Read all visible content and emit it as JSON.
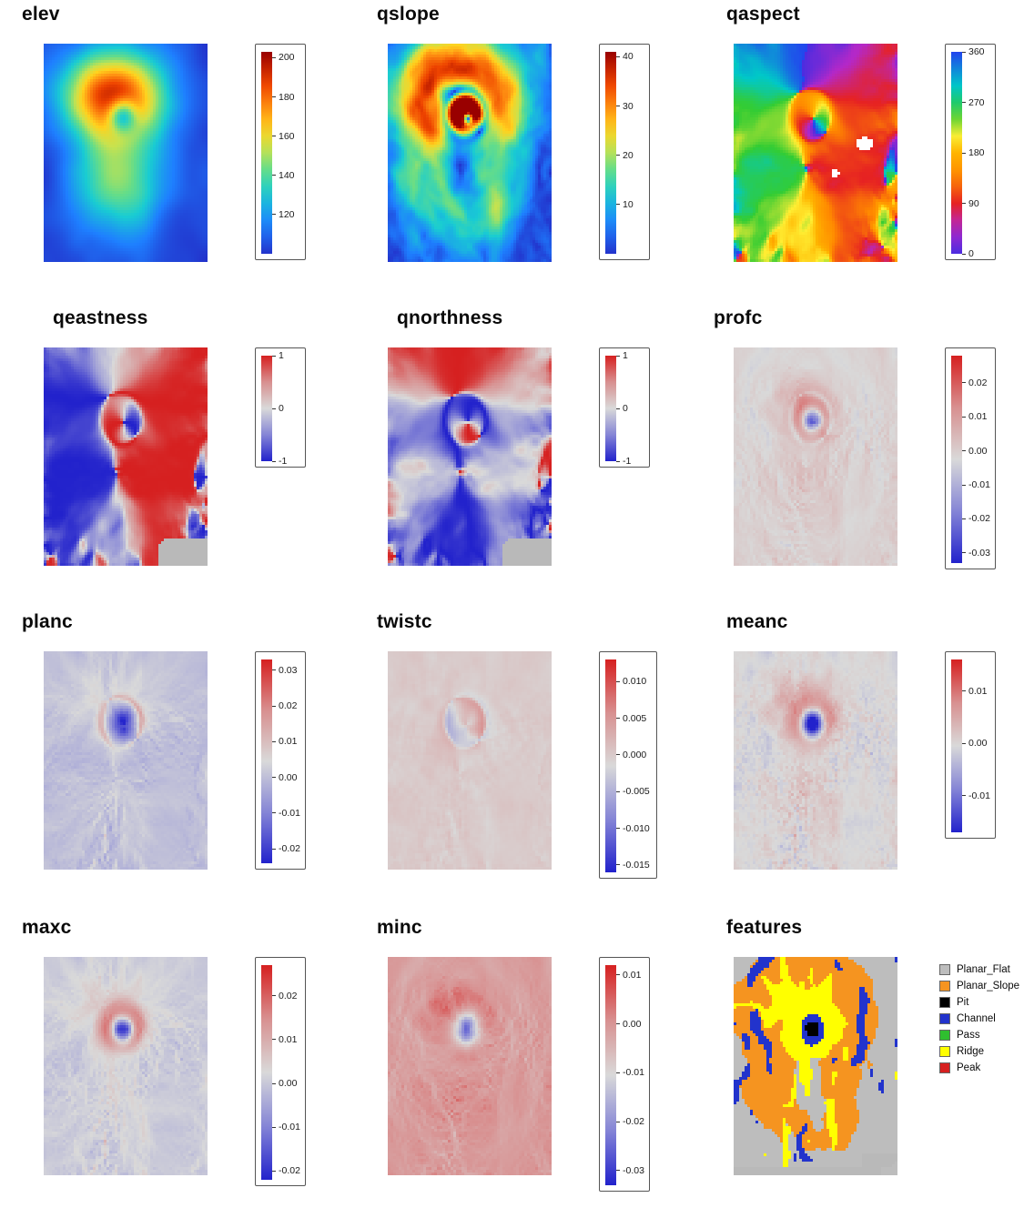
{
  "figure": {
    "background": "#ffffff",
    "description": "Grid of 12 terrain-attribute raster maps, each with a title and a colorbar or categorical legend"
  },
  "colormaps": {
    "rainbow": [
      [
        0,
        "#2233cc"
      ],
      [
        0.14,
        "#1e7fff"
      ],
      [
        0.3,
        "#19ccd2"
      ],
      [
        0.42,
        "#66dd88"
      ],
      [
        0.52,
        "#c8e24e"
      ],
      [
        0.62,
        "#ffd21e"
      ],
      [
        0.72,
        "#ff9212"
      ],
      [
        0.84,
        "#ee4400"
      ],
      [
        1,
        "#990000"
      ]
    ],
    "aspect": [
      [
        0,
        "#4b2ce0"
      ],
      [
        0.13,
        "#b428c8"
      ],
      [
        0.25,
        "#e62222"
      ],
      [
        0.38,
        "#ff8800"
      ],
      [
        0.5,
        "#ffb400"
      ],
      [
        0.58,
        "#ffee33"
      ],
      [
        0.7,
        "#33cc33"
      ],
      [
        0.83,
        "#00c8c8"
      ],
      [
        1,
        "#2244ee"
      ]
    ],
    "divergent": [
      [
        0,
        "#2222cc"
      ],
      [
        0.25,
        "#8585d6"
      ],
      [
        0.5,
        "#d9d9d9"
      ],
      [
        0.75,
        "#d89090"
      ],
      [
        1,
        "#d62020"
      ]
    ]
  },
  "panels": [
    {
      "id": "elev",
      "title": "elev",
      "colormap": "rainbow",
      "zlim": [
        100,
        203
      ],
      "ticks": [
        {
          "label": "200",
          "value": 200
        },
        {
          "label": "180",
          "value": 180
        },
        {
          "label": "160",
          "value": 160
        },
        {
          "label": "140",
          "value": 140
        },
        {
          "label": "120",
          "value": 120
        }
      ]
    },
    {
      "id": "qslope",
      "title": "qslope",
      "colormap": "rainbow",
      "zlim": [
        0,
        41
      ],
      "ticks": [
        {
          "label": "40",
          "value": 40
        },
        {
          "label": "30",
          "value": 30
        },
        {
          "label": "20",
          "value": 20
        },
        {
          "label": "10",
          "value": 10
        }
      ]
    },
    {
      "id": "qaspect",
      "title": "qaspect",
      "colormap": "aspect",
      "zlim": [
        0,
        360
      ],
      "ticks": [
        {
          "label": "360",
          "value": 360
        },
        {
          "label": "270",
          "value": 270
        },
        {
          "label": "180",
          "value": 180
        },
        {
          "label": "90",
          "value": 90
        },
        {
          "label": "0",
          "value": 0
        }
      ]
    },
    {
      "id": "qeastness",
      "title": "qeastness",
      "colormap": "divergent",
      "zlim": [
        -1,
        1
      ],
      "ticks": [
        {
          "label": "1",
          "value": 1
        },
        {
          "label": "0",
          "value": 0
        },
        {
          "label": "-1",
          "value": -1
        }
      ]
    },
    {
      "id": "qnorthness",
      "title": "qnorthness",
      "colormap": "divergent",
      "zlim": [
        -1,
        1
      ],
      "ticks": [
        {
          "label": "1",
          "value": 1
        },
        {
          "label": "0",
          "value": 0
        },
        {
          "label": "-1",
          "value": -1
        }
      ]
    },
    {
      "id": "profc",
      "title": "profc",
      "colormap": "divergent",
      "zlim": [
        -0.033,
        0.028
      ],
      "ticks": [
        {
          "label": "0.02",
          "value": 0.02
        },
        {
          "label": "0.01",
          "value": 0.01
        },
        {
          "label": "0.00",
          "value": 0
        },
        {
          "label": "-0.01",
          "value": -0.01
        },
        {
          "label": "-0.02",
          "value": -0.02
        },
        {
          "label": "-0.03",
          "value": -0.03
        }
      ]
    },
    {
      "id": "planc",
      "title": "planc",
      "colormap": "divergent",
      "zlim": [
        -0.024,
        0.033
      ],
      "ticks": [
        {
          "label": "0.03",
          "value": 0.03
        },
        {
          "label": "0.02",
          "value": 0.02
        },
        {
          "label": "0.01",
          "value": 0.01
        },
        {
          "label": "0.00",
          "value": 0
        },
        {
          "label": "-0.01",
          "value": -0.01
        },
        {
          "label": "-0.02",
          "value": -0.02
        }
      ]
    },
    {
      "id": "twistc",
      "title": "twistc",
      "colormap": "divergent",
      "zlim": [
        -0.016,
        0.013
      ],
      "ticks": [
        {
          "label": "0.010",
          "value": 0.01
        },
        {
          "label": "0.005",
          "value": 0.005
        },
        {
          "label": "0.000",
          "value": 0
        },
        {
          "label": "-0.005",
          "value": -0.005
        },
        {
          "label": "-0.010",
          "value": -0.01
        },
        {
          "label": "-0.015",
          "value": -0.015
        }
      ]
    },
    {
      "id": "meanc",
      "title": "meanc",
      "colormap": "divergent",
      "zlim": [
        -0.017,
        0.016
      ],
      "ticks": [
        {
          "label": "0.01",
          "value": 0.01
        },
        {
          "label": "0.00",
          "value": 0
        },
        {
          "label": "-0.01",
          "value": -0.01
        }
      ]
    },
    {
      "id": "maxc",
      "title": "maxc",
      "colormap": "divergent",
      "zlim": [
        -0.022,
        0.027
      ],
      "ticks": [
        {
          "label": "0.02",
          "value": 0.02
        },
        {
          "label": "0.01",
          "value": 0.01
        },
        {
          "label": "0.00",
          "value": 0
        },
        {
          "label": "-0.01",
          "value": -0.01
        },
        {
          "label": "-0.02",
          "value": -0.02
        }
      ]
    },
    {
      "id": "minc",
      "title": "minc",
      "colormap": "divergent",
      "zlim": [
        -0.033,
        0.012
      ],
      "ticks": [
        {
          "label": "0.01",
          "value": 0.01
        },
        {
          "label": "0.00",
          "value": 0
        },
        {
          "label": "-0.01",
          "value": -0.01
        },
        {
          "label": "-0.02",
          "value": -0.02
        },
        {
          "label": "-0.03",
          "value": -0.03
        }
      ]
    },
    {
      "id": "features",
      "title": "features",
      "legend_type": "categories",
      "categories": [
        {
          "label": "Planar_Flat",
          "color": "#bdbdbd"
        },
        {
          "label": "Planar_Slope",
          "color": "#f59420"
        },
        {
          "label": "Pit",
          "color": "#000000"
        },
        {
          "label": "Channel",
          "color": "#2233cc"
        },
        {
          "label": "Pass",
          "color": "#2fbf2f"
        },
        {
          "label": "Ridge",
          "color": "#ffff00"
        },
        {
          "label": "Peak",
          "color": "#d62020"
        }
      ]
    }
  ],
  "chart_data": [
    {
      "type": "heatmap",
      "title": "elev",
      "zlim": [
        100,
        203
      ],
      "colorbar_ticks": [
        120,
        140,
        160,
        180,
        200
      ],
      "palette": "rainbow blue(low)-cyan-green-yellow-orange-darkred(high)",
      "grid_approx": [
        60,
        80
      ],
      "pattern": "warm 160-200 dome in upper centre with a small cooler (~130-150) depression spot inside it, yellow-green lobe extending south, flat blue ~100-115 surroundings"
    },
    {
      "type": "heatmap",
      "title": "qslope",
      "zlim": [
        0,
        41
      ],
      "colorbar_ticks": [
        10,
        20,
        30,
        40
      ],
      "palette": "rainbow",
      "grid_approx": [
        60,
        80
      ],
      "pattern": "orange-red steep rings (25-40) around dome flanks and crater rim, blue 0-8 background with cyan speckle"
    },
    {
      "type": "heatmap",
      "title": "qaspect",
      "zlim": [
        0,
        360
      ],
      "colorbar_ticks": [
        0,
        90,
        180,
        270,
        360
      ],
      "palette": "cyclic violet-red-orange-yellow-green-cyan-blue",
      "grid_approx": [
        60,
        80
      ],
      "pattern": "green west-facing left side, red-orange east/south-facing right and bottom, purple north-facing upper right, small white NA patches"
    },
    {
      "type": "heatmap",
      "title": "qeastness",
      "zlim": [
        -1,
        1
      ],
      "colorbar_ticks": [
        -1,
        0,
        1
      ],
      "palette": "blue-gray-red divergent",
      "grid_approx": [
        60,
        80
      ],
      "pattern": "left half blue (-1, west-facing), right half red (+1, east-facing), reversed couplet inside the depression, gray NA patch lower right"
    },
    {
      "type": "heatmap",
      "title": "qnorthness",
      "zlim": [
        -1,
        1
      ],
      "colorbar_ticks": [
        -1,
        0,
        1
      ],
      "palette": "blue-gray-red divergent",
      "grid_approx": [
        60,
        80
      ],
      "pattern": "upper area red (north-facing), lower area blue (south-facing), reversed couplet inside the depression"
    },
    {
      "type": "heatmap",
      "title": "profc",
      "zlim": [
        -0.033,
        0.028
      ],
      "colorbar_ticks": [
        -0.03,
        -0.02,
        -0.01,
        0,
        0.01,
        0.02
      ],
      "palette": "blue-gray-red divergent",
      "grid_approx": [
        60,
        80
      ],
      "pattern": "near-zero gray field with red/blue concentric filigree around the crater and dome rim"
    },
    {
      "type": "heatmap",
      "title": "planc",
      "zlim": [
        -0.024,
        0.033
      ],
      "colorbar_ticks": [
        -0.02,
        -0.01,
        0,
        0.01,
        0.02,
        0.03
      ],
      "palette": "blue-gray-red divergent",
      "grid_approx": [
        60,
        80
      ],
      "pattern": "gray field with branched red ridge lines and blue channel lines"
    },
    {
      "type": "heatmap",
      "title": "twistc",
      "zlim": [
        -0.016,
        0.013
      ],
      "colorbar_ticks": [
        -0.015,
        -0.01,
        -0.005,
        0,
        0.005,
        0.01
      ],
      "palette": "blue-gray-red divergent",
      "grid_approx": [
        60,
        80
      ],
      "pattern": "fine-grained mixed red/blue speckle, strongest near crater rim"
    },
    {
      "type": "heatmap",
      "title": "meanc",
      "zlim": [
        -0.017,
        0.016
      ],
      "colorbar_ticks": [
        -0.01,
        0,
        0.01
      ],
      "palette": "blue-gray-red divergent",
      "grid_approx": [
        60,
        80
      ],
      "pattern": "red convex ring with blue concave core at the depression, soft filigree elsewhere"
    },
    {
      "type": "heatmap",
      "title": "maxc",
      "zlim": [
        -0.022,
        0.027
      ],
      "colorbar_ticks": [
        -0.02,
        -0.01,
        0,
        0.01,
        0.02
      ],
      "palette": "blue-gray-red divergent",
      "grid_approx": [
        60,
        80
      ],
      "pattern": "red-dominant ridge network on gray background"
    },
    {
      "type": "heatmap",
      "title": "minc",
      "zlim": [
        -0.033,
        0.012
      ],
      "colorbar_ticks": [
        -0.03,
        -0.02,
        -0.01,
        0,
        0.01
      ],
      "palette": "blue-gray-red divergent",
      "grid_approx": [
        60,
        80
      ],
      "pattern": "blue-dominant valley network on gray background"
    },
    {
      "type": "heatmap",
      "title": "features",
      "categorical": true,
      "classes": [
        "Planar_Flat",
        "Planar_Slope",
        "Pit",
        "Channel",
        "Pass",
        "Ridge",
        "Peak"
      ],
      "class_colors": [
        "#bdbdbd",
        "#f59420",
        "#000000",
        "#2233cc",
        "#2fbf2f",
        "#ffff00",
        "#d62020"
      ],
      "grid_approx": [
        60,
        80
      ],
      "pattern": "interlocking yellow Ridge and blue Channel regions dominate, gray Planar_Flat patches, rare green/red/black cells, gray strip along bottom edge"
    }
  ]
}
